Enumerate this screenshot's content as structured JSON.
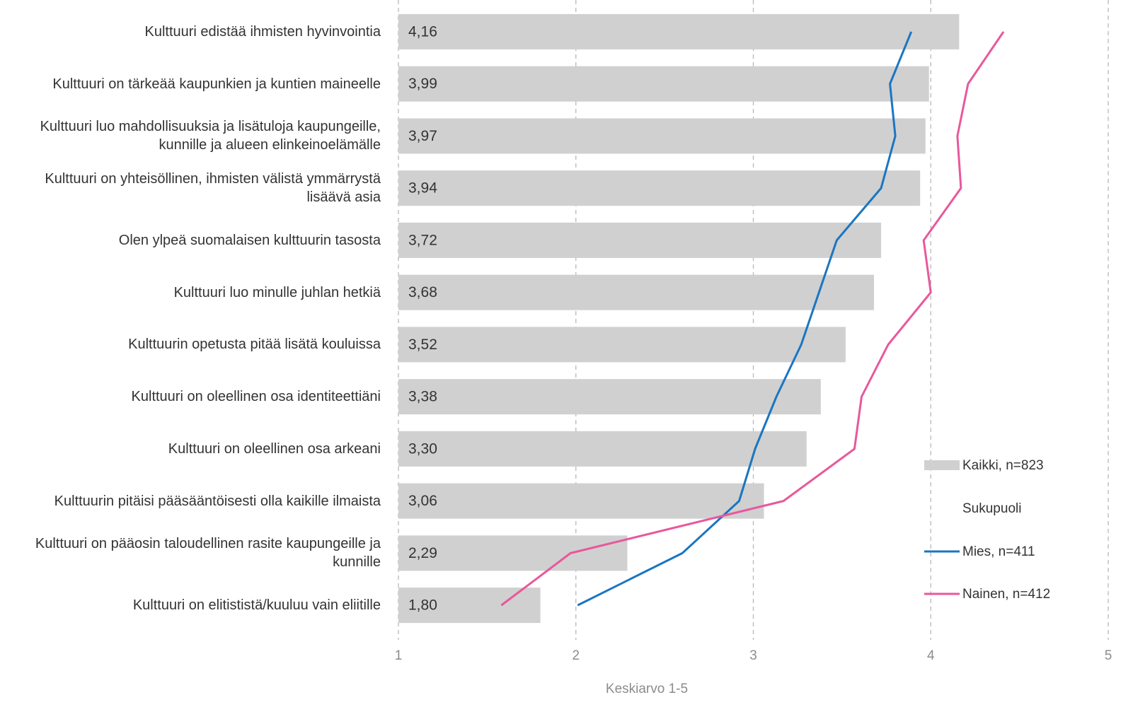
{
  "chart_data": {
    "type": "bar-line",
    "orientation": "horizontal",
    "x_label": "Keskiarvo 1-5",
    "categories": [
      "Kulttuuri edistää ihmisten hyvinvointia",
      "Kulttuuri on tärkeää kaupunkien ja kuntien maineelle",
      "Kulttuuri luo mahdollisuuksia ja lisätuloja kaupungeille, kunnille ja alueen elinkeinoelämälle",
      "Kulttuuri on yhteisöllinen, ihmisten välistä ymmärrystä lisäävä asia",
      "Olen ylpeä suomalaisen kulttuurin tasosta",
      "Kulttuuri luo minulle juhlan hetkiä",
      "Kulttuurin opetusta pitää lisätä kouluissa",
      "Kulttuuri on oleellinen osa identiteettiäni",
      "Kulttuuri on oleellinen osa arkeani",
      "Kulttuurin pitäisi pääsääntöisesti olla kaikille ilmaista",
      "Kulttuuri on pääosin taloudellinen rasite kaupungeille ja kunnille",
      "Kulttuuri on elitististä/kuuluu vain eliitille"
    ],
    "series": [
      {
        "name": "Kaikki, n=823",
        "kind": "bar",
        "color": "#d0d0d0",
        "values": [
          4.16,
          3.99,
          3.97,
          3.94,
          3.72,
          3.68,
          3.52,
          3.38,
          3.3,
          3.06,
          2.29,
          1.8
        ],
        "value_labels": [
          "4,16",
          "3,99",
          "3,97",
          "3,94",
          "3,72",
          "3,68",
          "3,52",
          "3,38",
          "3,30",
          "3,06",
          "2,29",
          "1,80"
        ]
      },
      {
        "name": "Mies, n=411",
        "kind": "line",
        "color": "#1a76c2",
        "values": [
          3.89,
          3.77,
          3.8,
          3.72,
          3.47,
          3.37,
          3.27,
          3.13,
          3.01,
          2.92,
          2.6,
          2.01
        ]
      },
      {
        "name": "Nainen, n=412",
        "kind": "line",
        "color": "#e8589c",
        "values": [
          4.41,
          4.21,
          4.15,
          4.17,
          3.96,
          4.0,
          3.76,
          3.61,
          3.57,
          3.17,
          1.97,
          1.58
        ]
      }
    ],
    "legend_group_title": "Sukupuoli",
    "xlim": [
      1,
      5
    ],
    "xticks": [
      1,
      2,
      3,
      4,
      5
    ],
    "grid": true,
    "legend": "right"
  }
}
